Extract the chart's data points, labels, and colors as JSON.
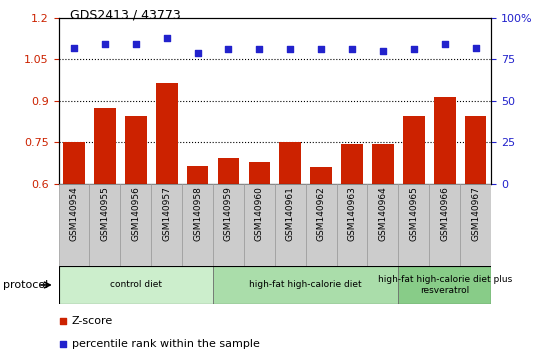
{
  "title": "GDS2413 / 43773",
  "categories": [
    "GSM140954",
    "GSM140955",
    "GSM140956",
    "GSM140957",
    "GSM140958",
    "GSM140959",
    "GSM140960",
    "GSM140961",
    "GSM140962",
    "GSM140963",
    "GSM140964",
    "GSM140965",
    "GSM140966",
    "GSM140967"
  ],
  "zscore": [
    0.75,
    0.875,
    0.845,
    0.965,
    0.665,
    0.695,
    0.68,
    0.75,
    0.66,
    0.745,
    0.745,
    0.845,
    0.915,
    0.845
  ],
  "percentile_raw": [
    82,
    84,
    84,
    88,
    79,
    81,
    81,
    81,
    81,
    81,
    80,
    81,
    84,
    82
  ],
  "ylim_left": [
    0.6,
    1.2
  ],
  "ylim_right": [
    0,
    100
  ],
  "yticks_left": [
    0.6,
    0.75,
    0.9,
    1.05,
    1.2
  ],
  "yticks_left_labels": [
    "0.6",
    "0.75",
    "0.9",
    "1.05",
    "1.2"
  ],
  "yticks_right": [
    0,
    25,
    50,
    75,
    100
  ],
  "yticks_right_labels": [
    "0",
    "25",
    "50",
    "75",
    "100%"
  ],
  "hlines": [
    0.75,
    0.9,
    1.05
  ],
  "bar_color": "#cc2200",
  "dot_color": "#2222cc",
  "groups": [
    {
      "label": "control diet",
      "start": 0,
      "end": 5,
      "color": "#cceecc"
    },
    {
      "label": "high-fat high-calorie diet",
      "start": 5,
      "end": 11,
      "color": "#aaddaa"
    },
    {
      "label": "high-fat high-calorie diet plus\nresveratrol",
      "start": 11,
      "end": 14,
      "color": "#88cc88"
    }
  ],
  "protocol_label": "protocol",
  "legend_zscore": "Z-score",
  "legend_percentile": "percentile rank within the sample",
  "tick_label_color_left": "#cc2200",
  "tick_label_color_right": "#2222cc",
  "label_bg_color": "#cccccc",
  "label_edge_color": "#999999"
}
